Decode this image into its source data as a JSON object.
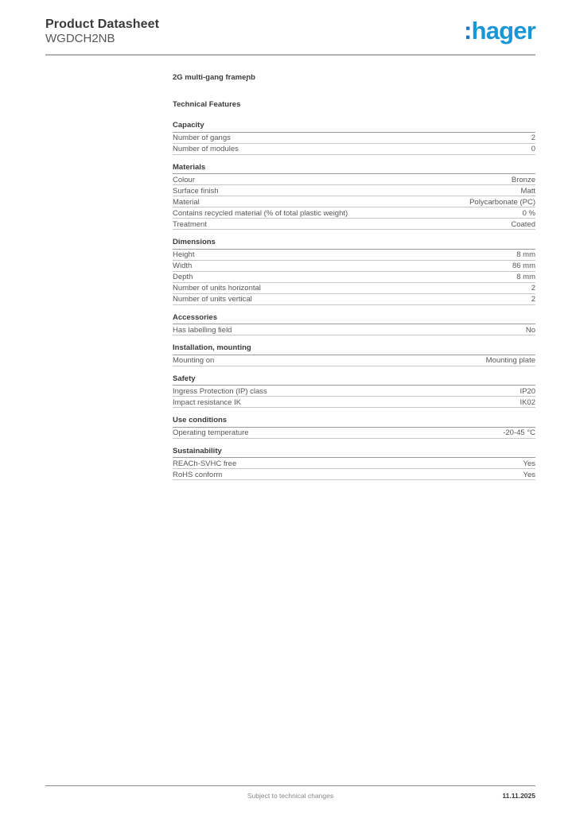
{
  "header": {
    "title": "Product Datasheet",
    "subtitle": "WGDCH2NB",
    "logo": {
      "colon": ":",
      "text": "hager",
      "colon_color": "#2374b9",
      "text_color": "#1a96d6"
    }
  },
  "product_title": "2G multi-gang frameɲb",
  "intro_heading": "Technical Features",
  "sections": [
    {
      "title": "Capacity",
      "rows": [
        {
          "label": "Number of gangs",
          "value": "2"
        },
        {
          "label": "Number of modules",
          "value": "0"
        }
      ]
    },
    {
      "title": "Materials",
      "rows": [
        {
          "label": "Colour",
          "value": "Bronze"
        },
        {
          "label": "Surface finish",
          "value": "Matt"
        },
        {
          "label": "Material",
          "value": "Polycarbonate (PC)"
        },
        {
          "label": "Contains recycled material (% of total plastic weight)",
          "value": "0 %"
        },
        {
          "label": "Treatment",
          "value": "Coated"
        }
      ]
    },
    {
      "title": "Dimensions",
      "rows": [
        {
          "label": "Height",
          "value": "8 mm"
        },
        {
          "label": "Width",
          "value": "86 mm"
        },
        {
          "label": "Depth",
          "value": "8 mm"
        },
        {
          "label": "Number of units horizontal",
          "value": "2"
        },
        {
          "label": "Number of units vertical",
          "value": "2"
        }
      ]
    },
    {
      "title": "Accessories",
      "rows": [
        {
          "label": "Has labelling field",
          "value": "No"
        }
      ]
    },
    {
      "title": "Installation, mounting",
      "rows": [
        {
          "label": "Mounting on",
          "value": "Mounting plate"
        }
      ]
    },
    {
      "title": "Safety",
      "rows": [
        {
          "label": "Ingress Protection (IP) class",
          "value": "IP20"
        },
        {
          "label": "Impact resistance IK",
          "value": "IK02"
        }
      ]
    },
    {
      "title": "Use conditions",
      "rows": [
        {
          "label": "Operating temperature",
          "value": "-20-45 °C"
        }
      ]
    },
    {
      "title": "Sustainability",
      "rows": [
        {
          "label": "REACh-SVHC free",
          "value": "Yes"
        },
        {
          "label": "RoHS conform",
          "value": "Yes"
        }
      ]
    }
  ],
  "footer": {
    "note": "Subject to technical changes",
    "date": "11.11.2025"
  }
}
